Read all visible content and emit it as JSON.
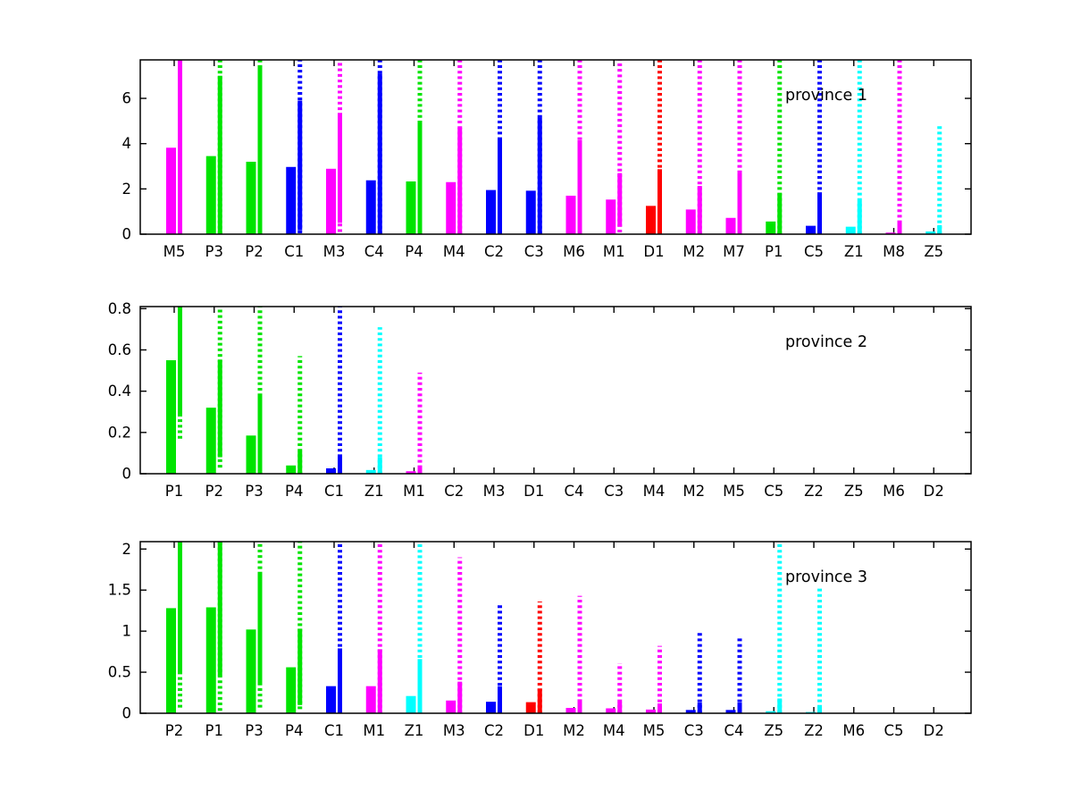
{
  "figure": {
    "background": "#ffffff",
    "axis_color": "#000000",
    "text_color": "#000000"
  },
  "colors": {
    "M": "#ff00ff",
    "P": "#00e400",
    "C": "#0000ff",
    "D": "#ff0000",
    "Z": "#00ffff"
  },
  "category_color_rule": "color chosen by first letter of category label: M=magenta, P=green, C=blue, D=red, Z=cyan",
  "chart_data": [
    {
      "type": "bar",
      "title": "province 1",
      "xlabel": "",
      "ylabel": "",
      "grid": false,
      "legend": "none",
      "ylim": [
        0,
        7.7
      ],
      "yticks": [
        0,
        2,
        4,
        6
      ],
      "categories": [
        "M5",
        "P3",
        "P2",
        "C1",
        "M3",
        "C4",
        "P4",
        "M4",
        "C2",
        "C3",
        "M6",
        "M1",
        "D1",
        "M2",
        "M7",
        "P1",
        "C5",
        "Z1",
        "M8",
        "Z5"
      ],
      "series": [
        {
          "name": "wide-bar",
          "role": "bar",
          "values": [
            3.82,
            3.45,
            3.2,
            2.97,
            2.89,
            2.38,
            2.33,
            2.3,
            1.95,
            1.92,
            1.7,
            1.53,
            1.25,
            1.09,
            0.72,
            0.56,
            0.37,
            0.33,
            0.07,
            0.12
          ]
        },
        {
          "name": "range-solid",
          "role": "box",
          "lo": [
            0,
            0,
            0,
            0.17,
            0.5,
            0,
            0,
            0,
            0,
            0,
            0,
            0.33,
            0,
            0,
            0,
            0,
            0,
            0,
            0,
            0
          ],
          "hi": [
            7.7,
            7.0,
            7.45,
            5.9,
            5.3,
            7.1,
            4.95,
            4.7,
            4.25,
            5.15,
            4.15,
            2.7,
            2.87,
            2.13,
            2.7,
            1.8,
            1.85,
            1.48,
            0.56,
            0.4
          ]
        },
        {
          "name": "range-dotted",
          "role": "whisker",
          "lo": [
            0,
            0,
            0,
            0.04,
            0.1,
            0,
            0,
            0,
            0,
            0,
            0,
            0.08,
            0,
            0,
            0,
            0,
            0,
            0,
            0,
            0
          ],
          "hi": [
            7.7,
            7.7,
            7.7,
            7.7,
            7.7,
            7.7,
            7.7,
            7.7,
            7.7,
            7.7,
            7.7,
            7.7,
            7.7,
            7.7,
            7.7,
            7.7,
            7.7,
            7.7,
            7.7,
            4.78
          ]
        }
      ],
      "note": "hi values equal to ylim max mean the line is clipped at the top of the axes"
    },
    {
      "type": "bar",
      "title": "province 2",
      "xlabel": "",
      "ylabel": "",
      "grid": false,
      "legend": "none",
      "ylim": [
        0,
        0.81
      ],
      "yticks": [
        0,
        0.2,
        0.4,
        0.6,
        0.8
      ],
      "categories": [
        "P1",
        "P2",
        "P3",
        "P4",
        "C1",
        "Z1",
        "M1",
        "C2",
        "M3",
        "D1",
        "C4",
        "C3",
        "M4",
        "M2",
        "M5",
        "C5",
        "Z2",
        "Z5",
        "M6",
        "D2"
      ],
      "series": [
        {
          "name": "wide-bar",
          "role": "bar",
          "values": [
            0.55,
            0.32,
            0.185,
            0.04,
            0.026,
            0.018,
            0.012,
            0,
            0,
            0,
            0,
            0,
            0,
            0,
            0,
            0,
            0,
            0,
            0,
            0
          ]
        },
        {
          "name": "range-solid",
          "role": "box",
          "lo": [
            0.29,
            0.08,
            0,
            0,
            0,
            0,
            0,
            null,
            null,
            null,
            null,
            null,
            null,
            null,
            null,
            null,
            null,
            null,
            null,
            null
          ],
          "hi": [
            0.81,
            0.55,
            0.38,
            0.11,
            0.09,
            0.08,
            0.04,
            null,
            null,
            null,
            null,
            null,
            null,
            null,
            null,
            null,
            null,
            null,
            null,
            null
          ]
        },
        {
          "name": "range-dotted",
          "role": "whisker",
          "lo": [
            0.17,
            0.03,
            0,
            0,
            0,
            0,
            0,
            null,
            null,
            null,
            null,
            null,
            null,
            null,
            null,
            null,
            null,
            null,
            null,
            null
          ],
          "hi": [
            0.81,
            0.81,
            0.81,
            0.57,
            0.81,
            0.71,
            0.49,
            null,
            null,
            null,
            null,
            null,
            null,
            null,
            null,
            null,
            null,
            null,
            null,
            null
          ]
        }
      ],
      "note": "hi values equal to ylim max mean the line is clipped at the top of the axes"
    },
    {
      "type": "bar",
      "title": "province 3",
      "xlabel": "",
      "ylabel": "",
      "grid": false,
      "legend": "none",
      "ylim": [
        0,
        2.09
      ],
      "yticks": [
        0,
        0.5,
        1,
        1.5,
        2
      ],
      "categories": [
        "P2",
        "P1",
        "P3",
        "P4",
        "C1",
        "M1",
        "Z1",
        "M3",
        "C2",
        "D1",
        "M2",
        "M4",
        "M5",
        "C3",
        "C4",
        "Z5",
        "Z2",
        "M6",
        "C5",
        "D2"
      ],
      "series": [
        {
          "name": "wide-bar",
          "role": "bar",
          "values": [
            1.28,
            1.29,
            1.02,
            0.56,
            0.33,
            0.33,
            0.21,
            0.155,
            0.14,
            0.135,
            0.065,
            0.06,
            0.045,
            0.04,
            0.04,
            0.025,
            0.015,
            0,
            0,
            0
          ]
        },
        {
          "name": "range-solid",
          "role": "box",
          "lo": [
            0.48,
            0.46,
            0.36,
            0.1,
            0,
            0,
            0,
            0,
            0,
            0,
            0,
            0,
            0,
            0,
            0,
            0,
            0,
            null,
            null,
            null
          ],
          "hi": [
            2.09,
            2.09,
            1.71,
            1.03,
            0.79,
            0.78,
            0.66,
            0.385,
            0.33,
            0.3,
            0.17,
            0.14,
            0.12,
            0.13,
            0.13,
            0.18,
            0.08,
            null,
            null,
            null
          ]
        },
        {
          "name": "range-dotted",
          "role": "whisker",
          "lo": [
            0.07,
            0.03,
            0.07,
            0.05,
            0,
            0,
            0,
            0,
            0,
            0,
            0,
            0,
            0,
            0,
            0,
            0,
            0,
            null,
            null,
            null
          ],
          "hi": [
            2.09,
            2.09,
            2.09,
            2.09,
            2.09,
            2.09,
            2.09,
            1.9,
            1.34,
            1.36,
            1.43,
            0.61,
            0.82,
            0.99,
            0.92,
            2.09,
            1.53,
            null,
            null,
            null
          ]
        }
      ],
      "note": "hi values equal to ylim max mean the line is clipped at the top of the axes"
    }
  ]
}
